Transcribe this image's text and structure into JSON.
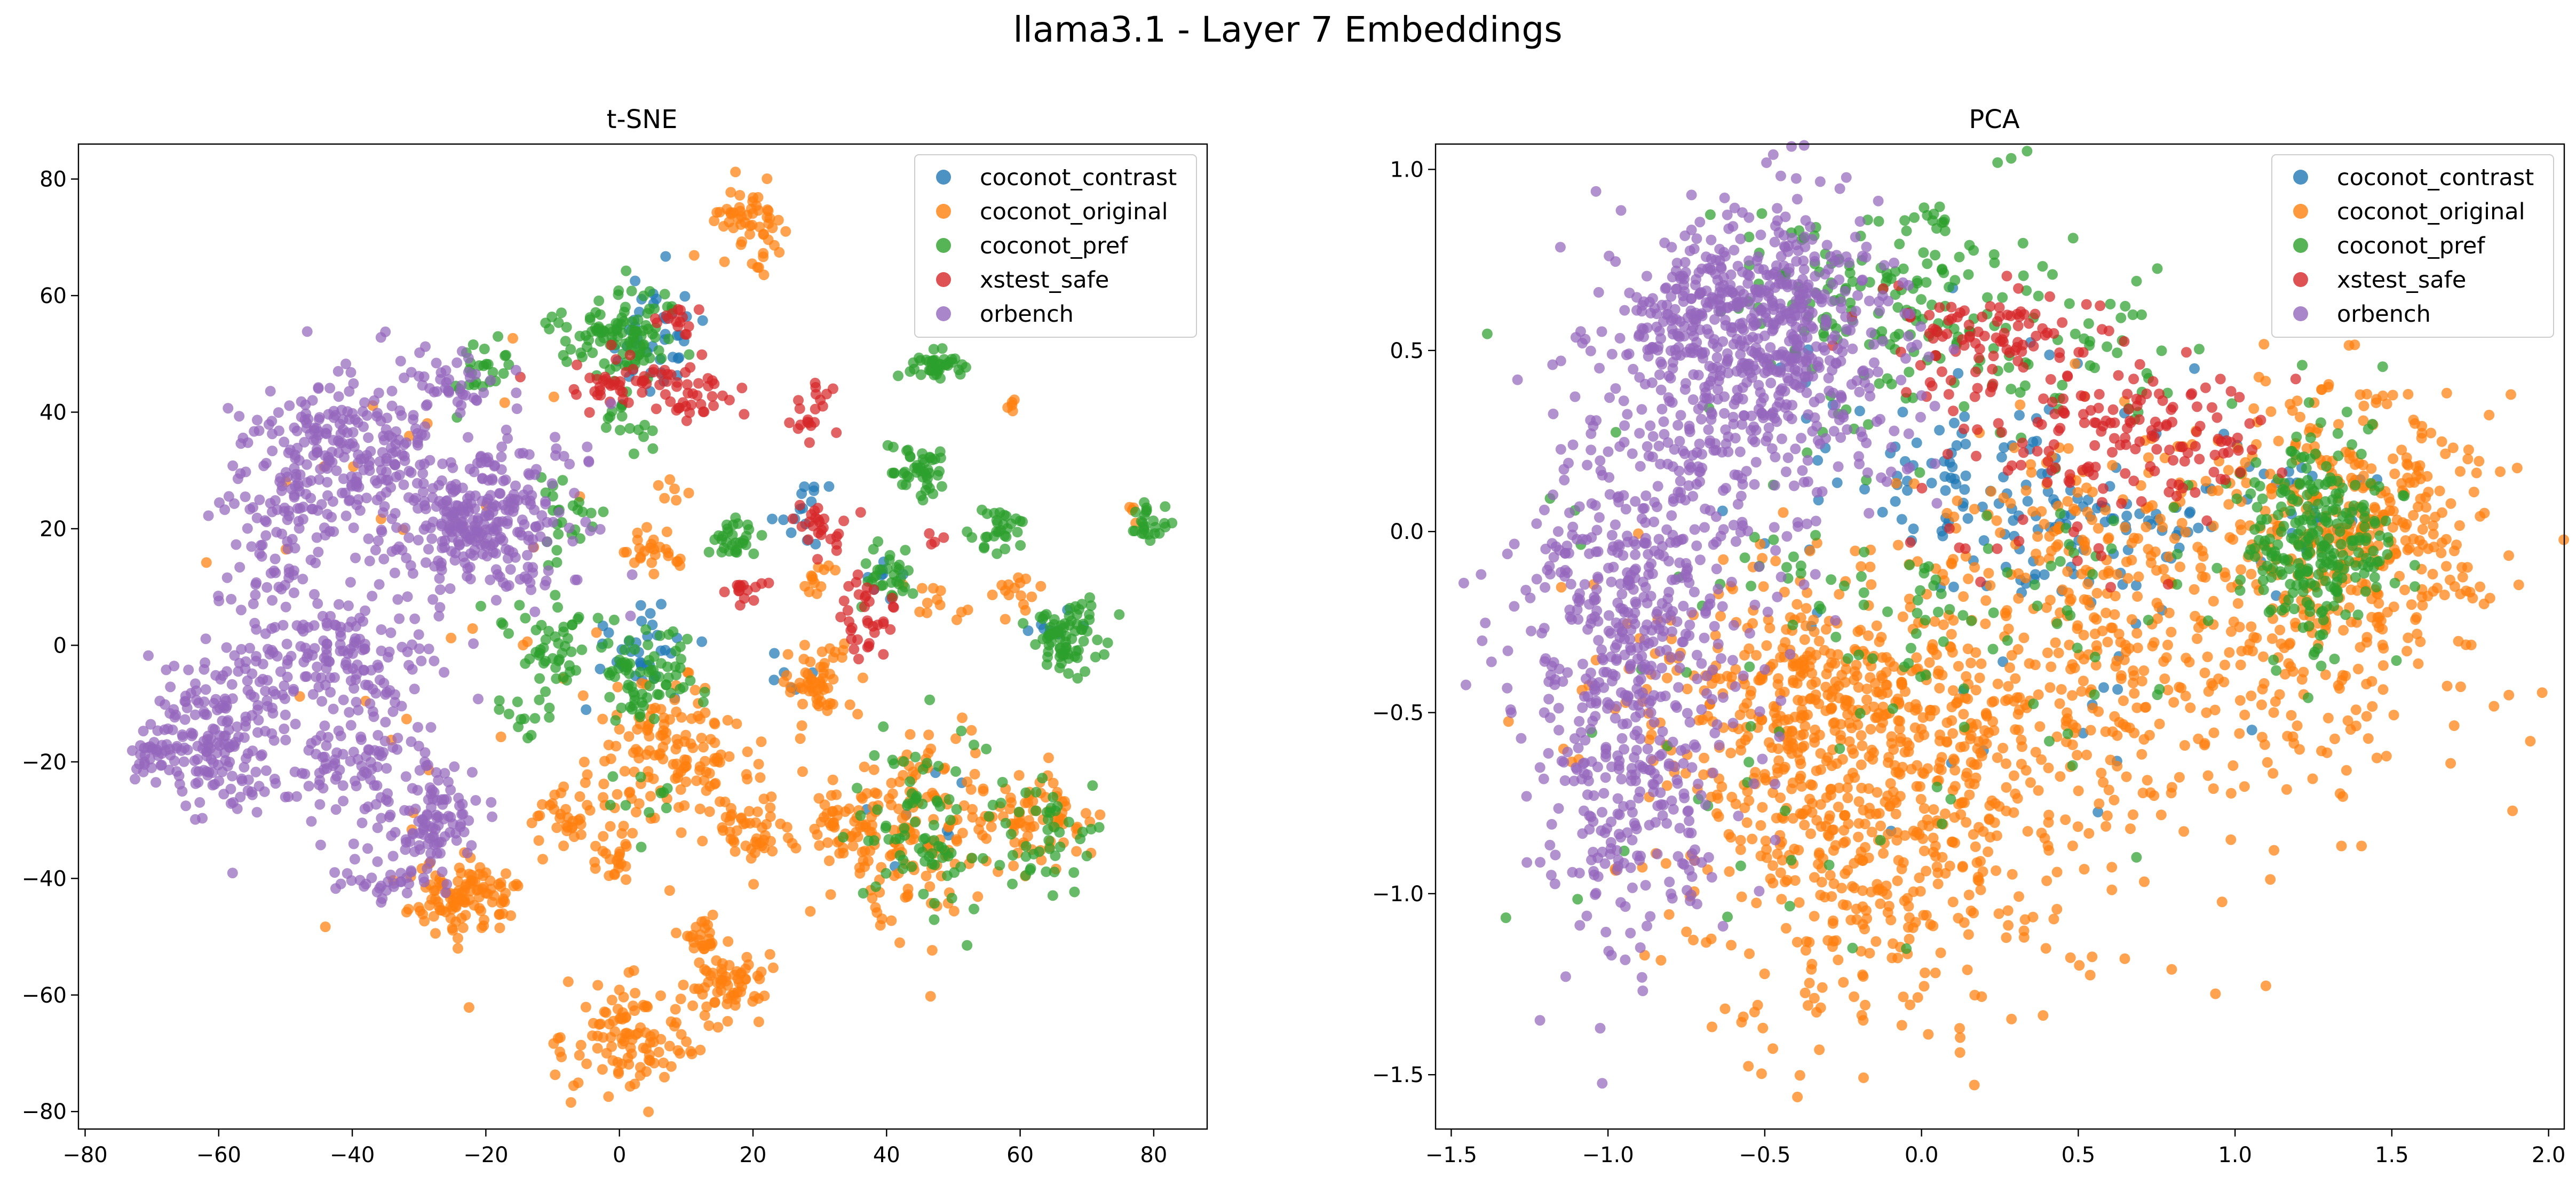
{
  "figure": {
    "title": "llama3.1 - Layer 7 Embeddings"
  },
  "series_colors": {
    "coconot_contrast": "#1f77b4",
    "coconot_original": "#ff7f0e",
    "coconot_pref": "#2ca02c",
    "xstest_safe": "#d62728",
    "orbench": "#9467bd"
  },
  "chart_data": [
    {
      "type": "scatter",
      "title": "t-SNE",
      "xlabel": "",
      "ylabel": "",
      "xlim": [
        -81,
        88
      ],
      "ylim": [
        -83,
        86
      ],
      "xticks": [
        -80,
        -60,
        -40,
        -20,
        0,
        20,
        40,
        60,
        80
      ],
      "yticks": [
        -80,
        -60,
        -40,
        -20,
        0,
        20,
        40,
        60,
        80
      ],
      "xtick_labels": [
        "−80",
        "−60",
        "−40",
        "−20",
        "0",
        "20",
        "40",
        "60",
        "80"
      ],
      "ytick_labels": [
        "−80",
        "−60",
        "−40",
        "−20",
        "0",
        "20",
        "40",
        "60",
        "80"
      ],
      "grid": false,
      "legend": "top-right",
      "series": [
        {
          "name": "coconot_contrast",
          "clusters": [
            {
              "x": 5,
              "y": 52,
              "sx": 4,
              "sy": 6,
              "n": 40
            },
            {
              "x": 3,
              "y": 0,
              "sx": 4,
              "sy": 4,
              "n": 35
            },
            {
              "x": 28,
              "y": 24,
              "sx": 2.5,
              "sy": 2.5,
              "n": 15
            },
            {
              "x": 40,
              "y": 12,
              "sx": 2,
              "sy": 2,
              "n": 8
            },
            {
              "x": 66,
              "y": 2,
              "sx": 2,
              "sy": 2,
              "n": 8
            },
            {
              "x": 45,
              "y": -30,
              "sx": 4,
              "sy": 4,
              "n": 8
            },
            {
              "x": 28,
              "y": -6,
              "sx": 3,
              "sy": 3,
              "n": 6
            }
          ]
        },
        {
          "name": "coconot_original",
          "clusters": [
            {
              "x": 19,
              "y": 73,
              "sx": 3,
              "sy": 3,
              "n": 55
            },
            {
              "x": 8,
              "y": -20,
              "sx": 6,
              "sy": 6,
              "n": 140
            },
            {
              "x": 30,
              "y": -6,
              "sx": 3,
              "sy": 3,
              "n": 55
            },
            {
              "x": 2,
              "y": -67,
              "sx": 5,
              "sy": 5,
              "n": 110
            },
            {
              "x": 16,
              "y": -58,
              "sx": 3,
              "sy": 3,
              "n": 60
            },
            {
              "x": 12,
              "y": -50,
              "sx": 2,
              "sy": 2,
              "n": 25
            },
            {
              "x": 20,
              "y": -32,
              "sx": 3,
              "sy": 3,
              "n": 45
            },
            {
              "x": 33,
              "y": -32,
              "sx": 3,
              "sy": 3,
              "n": 40
            },
            {
              "x": 45,
              "y": -30,
              "sx": 6,
              "sy": 9,
              "n": 150
            },
            {
              "x": 62,
              "y": -30,
              "sx": 4,
              "sy": 4,
              "n": 80
            },
            {
              "x": -23,
              "y": -43,
              "sx": 4,
              "sy": 3,
              "n": 110
            },
            {
              "x": -8,
              "y": -30,
              "sx": 3,
              "sy": 3,
              "n": 35
            },
            {
              "x": 0,
              "y": -37,
              "sx": 2,
              "sy": 2,
              "n": 20
            },
            {
              "x": 5,
              "y": 16,
              "sx": 2,
              "sy": 2,
              "n": 25
            },
            {
              "x": 60,
              "y": 9,
              "sx": 2,
              "sy": 2,
              "n": 15
            },
            {
              "x": 47,
              "y": 7,
              "sx": 2,
              "sy": 2,
              "n": 12
            },
            {
              "x": 29,
              "y": 11,
              "sx": 2,
              "sy": 2,
              "n": 12
            },
            {
              "x": 8,
              "y": 26,
              "sx": 1.5,
              "sy": 1.5,
              "n": 6
            },
            {
              "x": 59,
              "y": 41,
              "sx": 1,
              "sy": 1,
              "n": 5
            },
            {
              "x": 77,
              "y": 23,
              "sx": 1,
              "sy": 1,
              "n": 4
            },
            {
              "x": -20,
              "y": 0,
              "sx": 20,
              "sy": 30,
              "n": 40
            }
          ]
        },
        {
          "name": "coconot_pref",
          "clusters": [
            {
              "x": -1,
              "y": 54,
              "sx": 5,
              "sy": 4,
              "n": 110
            },
            {
              "x": 5,
              "y": -5,
              "sx": 4,
              "sy": 4,
              "n": 70
            },
            {
              "x": -10,
              "y": 0,
              "sx": 4,
              "sy": 4,
              "n": 50
            },
            {
              "x": -20,
              "y": 47,
              "sx": 3,
              "sy": 3,
              "n": 25
            },
            {
              "x": 48,
              "y": 48,
              "sx": 2,
              "sy": 1.5,
              "n": 40
            },
            {
              "x": 45,
              "y": 30,
              "sx": 2.5,
              "sy": 2.5,
              "n": 45
            },
            {
              "x": 67,
              "y": 1,
              "sx": 2.5,
              "sy": 3,
              "n": 75
            },
            {
              "x": 79,
              "y": 21,
              "sx": 1.5,
              "sy": 1.5,
              "n": 25
            },
            {
              "x": 57,
              "y": 20,
              "sx": 2,
              "sy": 2,
              "n": 30
            },
            {
              "x": 40,
              "y": 12,
              "sx": 2,
              "sy": 2,
              "n": 30
            },
            {
              "x": 17,
              "y": 18,
              "sx": 2,
              "sy": 2,
              "n": 30
            },
            {
              "x": 45,
              "y": -30,
              "sx": 5,
              "sy": 8,
              "n": 80
            },
            {
              "x": 63,
              "y": -33,
              "sx": 4,
              "sy": 5,
              "n": 45
            },
            {
              "x": -8,
              "y": 22,
              "sx": 2,
              "sy": 4,
              "n": 25
            },
            {
              "x": 0,
              "y": 38,
              "sx": 2,
              "sy": 2,
              "n": 15
            },
            {
              "x": -15,
              "y": -12,
              "sx": 3,
              "sy": 3,
              "n": 12
            },
            {
              "x": 5,
              "y": -25,
              "sx": 3,
              "sy": 3,
              "n": 10
            }
          ]
        },
        {
          "name": "xstest_safe",
          "clusters": [
            {
              "x": 0,
              "y": 45,
              "sx": 4,
              "sy": 2,
              "n": 40
            },
            {
              "x": 10,
              "y": 43,
              "sx": 3,
              "sy": 3,
              "n": 40
            },
            {
              "x": 9,
              "y": 56,
              "sx": 2,
              "sy": 1.5,
              "n": 15
            },
            {
              "x": 29,
              "y": 41,
              "sx": 1.5,
              "sy": 3,
              "n": 20
            },
            {
              "x": 30,
              "y": 20,
              "sx": 2,
              "sy": 2,
              "n": 25
            },
            {
              "x": 19,
              "y": 10,
              "sx": 2,
              "sy": 1.5,
              "n": 15
            },
            {
              "x": 37,
              "y": 5,
              "sx": 2.5,
              "sy": 3,
              "n": 35
            },
            {
              "x": 47,
              "y": 19,
              "sx": 1,
              "sy": 1,
              "n": 4
            }
          ]
        },
        {
          "name": "orbench",
          "clusters": [
            {
              "x": -42,
              "y": 32,
              "sx": 7,
              "sy": 7,
              "n": 260
            },
            {
              "x": -22,
              "y": 22,
              "sx": 6,
              "sy": 6,
              "n": 260
            },
            {
              "x": -40,
              "y": -2,
              "sx": 7,
              "sy": 6,
              "n": 160
            },
            {
              "x": -60,
              "y": -15,
              "sx": 5,
              "sy": 7,
              "n": 200
            },
            {
              "x": -40,
              "y": -20,
              "sx": 6,
              "sy": 5,
              "n": 90
            },
            {
              "x": -28,
              "y": -30,
              "sx": 4,
              "sy": 4,
              "n": 90
            },
            {
              "x": -35,
              "y": -40,
              "sx": 4,
              "sy": 3,
              "n": 40
            },
            {
              "x": -52,
              "y": 15,
              "sx": 4,
              "sy": 6,
              "n": 60
            },
            {
              "x": -70,
              "y": -18,
              "sx": 2,
              "sy": 1.5,
              "n": 25
            },
            {
              "x": -25,
              "y": 45,
              "sx": 5,
              "sy": 3,
              "n": 40
            },
            {
              "x": -12,
              "y": 20,
              "sx": 5,
              "sy": 10,
              "n": 40
            }
          ]
        }
      ]
    },
    {
      "type": "scatter",
      "title": "PCA",
      "xlabel": "",
      "ylabel": "",
      "xlim": [
        -1.55,
        2.05
      ],
      "ylim": [
        -1.65,
        1.07
      ],
      "xticks": [
        -1.5,
        -1.0,
        -0.5,
        0.0,
        0.5,
        1.0,
        1.5,
        2.0
      ],
      "yticks": [
        -1.5,
        -1.0,
        -0.5,
        0.0,
        0.5,
        1.0
      ],
      "xtick_labels": [
        "−1.5",
        "−1.0",
        "−0.5",
        "0.0",
        "0.5",
        "1.0",
        "1.5",
        "2.0"
      ],
      "ytick_labels": [
        "−1.5",
        "−1.0",
        "−0.5",
        "0.0",
        "0.5",
        "1.0"
      ],
      "grid": false,
      "legend": "top-right",
      "series": [
        {
          "name": "coconot_contrast",
          "clusters": [
            {
              "x": 0.4,
              "y": 0.05,
              "sx": 0.3,
              "sy": 0.12,
              "n": 110
            },
            {
              "x": 0.0,
              "y": 0.3,
              "sx": 0.3,
              "sy": 0.15,
              "n": 45
            },
            {
              "x": 1.2,
              "y": 0.1,
              "sx": 0.15,
              "sy": 0.12,
              "n": 25
            },
            {
              "x": 0.3,
              "y": -0.3,
              "sx": 0.4,
              "sy": 0.3,
              "n": 25
            }
          ]
        },
        {
          "name": "coconot_original",
          "clusters": [
            {
              "x": -0.3,
              "y": -0.5,
              "sx": 0.3,
              "sy": 0.2,
              "n": 500
            },
            {
              "x": -0.2,
              "y": -0.95,
              "sx": 0.3,
              "sy": 0.25,
              "n": 300
            },
            {
              "x": 0.4,
              "y": -0.55,
              "sx": 0.35,
              "sy": 0.3,
              "n": 300
            },
            {
              "x": 1.4,
              "y": 0.0,
              "sx": 0.2,
              "sy": 0.2,
              "n": 350
            },
            {
              "x": 0.7,
              "y": -0.05,
              "sx": 0.35,
              "sy": 0.2,
              "n": 200
            },
            {
              "x": 1.2,
              "y": -0.4,
              "sx": 0.3,
              "sy": 0.2,
              "n": 100
            }
          ]
        },
        {
          "name": "coconot_pref",
          "clusters": [
            {
              "x": 1.25,
              "y": 0.0,
              "sx": 0.12,
              "sy": 0.15,
              "n": 260
            },
            {
              "x": -0.1,
              "y": 0.65,
              "sx": 0.25,
              "sy": 0.15,
              "n": 180
            },
            {
              "x": 0.6,
              "y": 0.5,
              "sx": 0.15,
              "sy": 0.1,
              "n": 35
            },
            {
              "x": -0.2,
              "y": -0.4,
              "sx": 0.5,
              "sy": 0.35,
              "n": 90
            },
            {
              "x": 0.4,
              "y": -0.1,
              "sx": 0.4,
              "sy": 0.2,
              "n": 45
            }
          ]
        },
        {
          "name": "xstest_safe",
          "clusters": [
            {
              "x": 0.2,
              "y": 0.55,
              "sx": 0.15,
              "sy": 0.08,
              "n": 90
            },
            {
              "x": 0.5,
              "y": 0.3,
              "sx": 0.2,
              "sy": 0.1,
              "n": 80
            },
            {
              "x": 0.85,
              "y": 0.25,
              "sx": 0.15,
              "sy": 0.08,
              "n": 70
            },
            {
              "x": 0.5,
              "y": 0.0,
              "sx": 0.3,
              "sy": 0.1,
              "n": 20
            }
          ]
        },
        {
          "name": "orbench",
          "clusters": [
            {
              "x": -0.55,
              "y": 0.6,
              "sx": 0.22,
              "sy": 0.15,
              "n": 520
            },
            {
              "x": -0.7,
              "y": 0.25,
              "sx": 0.2,
              "sy": 0.2,
              "n": 200
            },
            {
              "x": -0.95,
              "y": -0.2,
              "sx": 0.17,
              "sy": 0.25,
              "n": 300
            },
            {
              "x": -0.95,
              "y": -0.75,
              "sx": 0.15,
              "sy": 0.25,
              "n": 200
            },
            {
              "x": -0.3,
              "y": 0.35,
              "sx": 0.2,
              "sy": 0.15,
              "n": 80
            },
            {
              "x": -0.8,
              "y": -0.5,
              "sx": 0.25,
              "sy": 0.3,
              "n": 70
            }
          ]
        }
      ]
    }
  ]
}
